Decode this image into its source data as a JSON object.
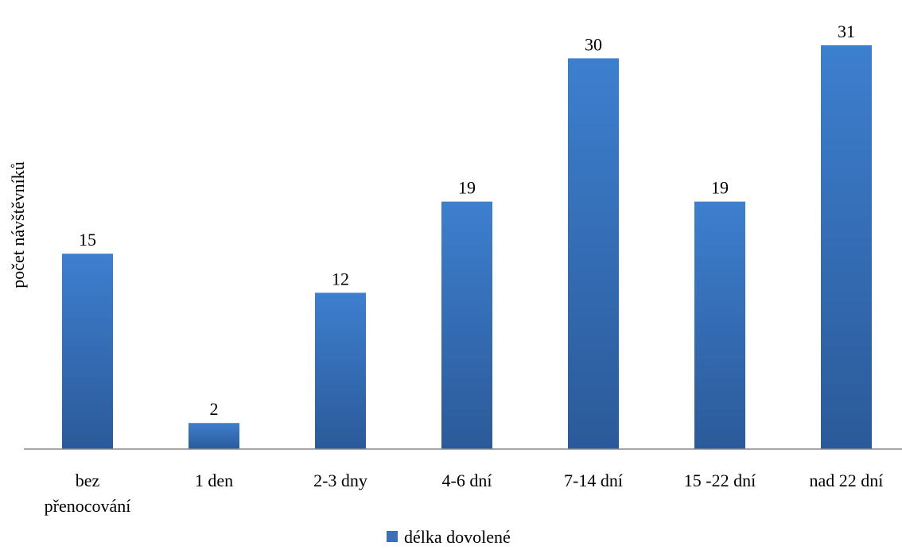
{
  "chart_data": {
    "type": "bar",
    "categories": [
      [
        "bez",
        "přenocování"
      ],
      [
        "1 den"
      ],
      [
        "2-3 dny"
      ],
      [
        "4-6 dní"
      ],
      [
        "7-14 dní"
      ],
      [
        "15 -22 dní"
      ],
      [
        "nad 22 dní"
      ]
    ],
    "series": [
      {
        "name": "délka dovolené",
        "values": [
          15,
          2,
          12,
          19,
          30,
          19,
          31
        ]
      }
    ],
    "ylabel": "počet návštěvníků",
    "ylim": [
      0,
      31
    ],
    "grid": false,
    "legend": "bottom",
    "data_labels": true
  },
  "colors": {
    "bar_top": "#3d7fcf",
    "bar_bottom": "#2b5a99",
    "axis": "#888888",
    "legend_swatch": "#3b6fb6"
  }
}
